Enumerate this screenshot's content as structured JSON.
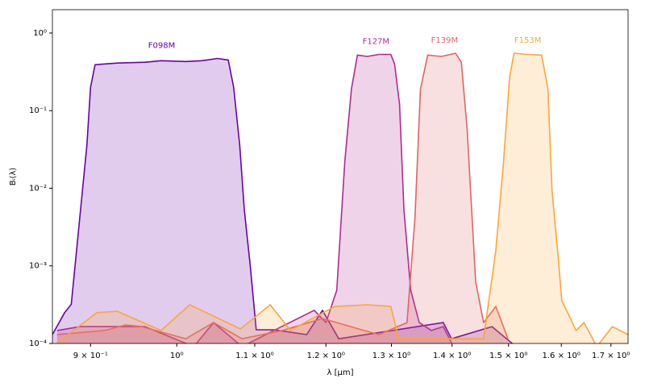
{
  "chart_data": {
    "type": "line",
    "xlabel": "λ [μm]",
    "ylabel": "Bᵢ(λ)",
    "xscale": "log",
    "yscale": "log",
    "grid": false,
    "fill": true,
    "xlim": [
      0.859,
      1.736
    ],
    "ylim": [
      0.0001,
      2
    ],
    "xticks": [
      {
        "value": 0.9,
        "label": "9 × 10⁻¹"
      },
      {
        "value": 1,
        "label": "10⁰"
      },
      {
        "value": 1.1,
        "label": "1.1 × 10⁰"
      },
      {
        "value": 1.2,
        "label": "1.2 × 10⁰"
      },
      {
        "value": 1.3,
        "label": "1.3 × 10⁰"
      },
      {
        "value": 1.4,
        "label": "1.4 × 10⁰"
      },
      {
        "value": 1.5,
        "label": "1.5 × 10⁰"
      },
      {
        "value": 1.6,
        "label": "1.6 × 10⁰"
      },
      {
        "value": 1.7,
        "label": "1.7 × 10⁰"
      }
    ],
    "yticks": [
      {
        "value": 0.0001,
        "label": "10⁻⁴"
      },
      {
        "value": 0.001,
        "label": "10⁻³"
      },
      {
        "value": 0.01,
        "label": "10⁻²"
      },
      {
        "value": 0.1,
        "label": "10⁻¹"
      },
      {
        "value": 1,
        "label": "10⁰"
      }
    ],
    "series": [
      {
        "name": "F098M",
        "color": "#6a00a8",
        "x": [
          0.859,
          0.872,
          0.879,
          0.896,
          0.9,
          0.905,
          0.916,
          0.93,
          0.962,
          0.981,
          1.011,
          1.031,
          1.051,
          1.065,
          1.072,
          1.08,
          1.086,
          1.094,
          1.102,
          1.126,
          1.172,
          1.195,
          1.219,
          1.385,
          1.399,
          1.47,
          1.514
        ],
        "values": [
          0.00013,
          0.00025,
          0.00032,
          0.036,
          0.2,
          0.39,
          0.4,
          0.41,
          0.42,
          0.44,
          0.43,
          0.44,
          0.47,
          0.45,
          0.2,
          0.036,
          0.0053,
          0.001,
          0.00015,
          0.00015,
          0.00013,
          0.000267,
          0.000115,
          0.000186,
          0.000115,
          0.000165,
          9.1e-05
        ]
      },
      {
        "name": "F127M",
        "color": "#b12a90",
        "x": [
          0.864,
          0.889,
          0.907,
          0.962,
          1.021,
          1.046,
          1.083,
          1.126,
          1.183,
          1.2,
          1.216,
          1.228,
          1.238,
          1.247,
          1.262,
          1.28,
          1.299,
          1.305,
          1.313,
          1.32,
          1.331,
          1.345,
          1.365,
          1.385,
          1.399
        ],
        "values": [
          0.000147,
          0.000165,
          0.000165,
          0.000165,
          9.1e-05,
          0.000186,
          9.1e-05,
          0.000147,
          0.000267,
          0.000186,
          0.000485,
          0.0223,
          0.19,
          0.52,
          0.5,
          0.53,
          0.53,
          0.4,
          0.12,
          0.0053,
          0.000485,
          0.000186,
          0.000147,
          0.000165,
          0.000102
        ]
      },
      {
        "name": "F139M",
        "color": "#e16462",
        "x": [
          0.864,
          0.916,
          0.939,
          0.958,
          1.011,
          1.046,
          1.083,
          1.138,
          1.195,
          1.249,
          1.28,
          1.325,
          1.338,
          1.347,
          1.359,
          1.382,
          1.406,
          1.416,
          1.426,
          1.441,
          1.455,
          1.477,
          1.499
        ],
        "values": [
          0.00013,
          0.000147,
          0.000173,
          0.000165,
          0.000115,
          0.000186,
          0.000115,
          0.000147,
          0.00021,
          0.000154,
          0.00013,
          0.000186,
          0.0042,
          0.19,
          0.52,
          0.5,
          0.55,
          0.42,
          0.058,
          0.00062,
          0.000186,
          0.0003,
          0.000115
        ]
      },
      {
        "name": "F153M",
        "color": "#fca636",
        "x": [
          0.859,
          0.907,
          0.93,
          0.981,
          1.016,
          1.081,
          1.121,
          1.149,
          1.213,
          1.262,
          1.299,
          1.312,
          1.455,
          1.477,
          1.491,
          1.502,
          1.51,
          1.536,
          1.562,
          1.574,
          1.582,
          1.594,
          1.601,
          1.614,
          1.629,
          1.645,
          1.671,
          1.703,
          1.736
        ],
        "values": [
          9.1e-05,
          0.00025,
          0.00026,
          0.000147,
          0.000315,
          0.000154,
          0.000315,
          0.000147,
          0.0003,
          0.000315,
          0.0003,
          0.000115,
          0.000115,
          0.0016,
          0.0223,
          0.27,
          0.55,
          0.53,
          0.52,
          0.19,
          0.0093,
          0.00127,
          0.000355,
          0.000237,
          0.000147,
          0.000186,
          9.1e-05,
          0.000165,
          0.00013
        ]
      }
    ]
  }
}
